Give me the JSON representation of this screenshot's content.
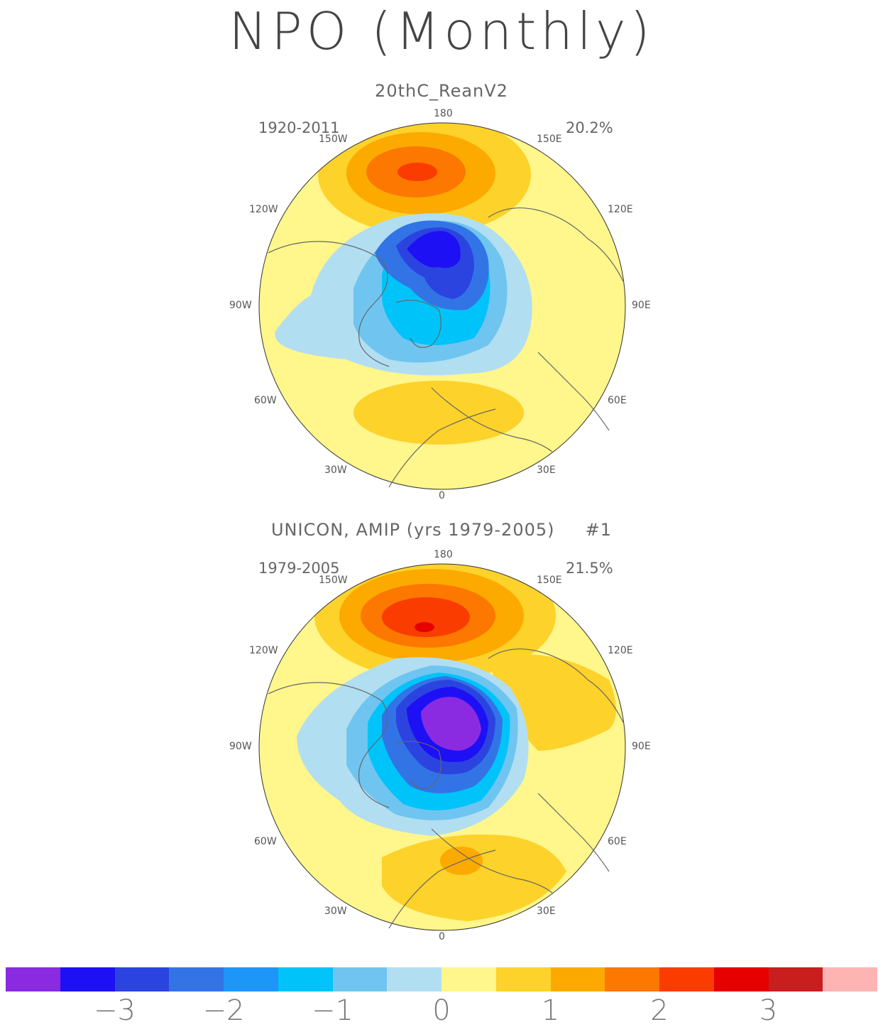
{
  "title": "NPO (Monthly)",
  "panels": [
    {
      "subtitle": "20thC_ReanV2",
      "period": "1920-2011",
      "variance": "20.2%"
    },
    {
      "subtitle": "UNICON, AMIP (yrs 1979-2005)     #1",
      "period": "1979-2005",
      "variance": "21.5%"
    }
  ],
  "longitude_labels": {
    "top": "180",
    "bottom": "0",
    "w150": "150W",
    "e150": "150E",
    "w120": "120W",
    "e120": "120E",
    "w90": "90W",
    "e90": "90E",
    "w60": "60W",
    "e60": "60E",
    "w30": "30W",
    "e30": "30E"
  },
  "colorbar": {
    "colors": [
      "#8a2be2",
      "#1e10f5",
      "#2b44e0",
      "#3274e6",
      "#1e96f8",
      "#00c3fa",
      "#6fc5f0",
      "#b2def2",
      "#fff68c",
      "#fdd22a",
      "#fcaa00",
      "#fc7800",
      "#fa3c00",
      "#e60000",
      "#c81e1e",
      "#ffb4b4"
    ],
    "tick_labels": [
      "-3",
      "-2",
      "-1",
      "0",
      "1",
      "2",
      "3"
    ]
  }
}
